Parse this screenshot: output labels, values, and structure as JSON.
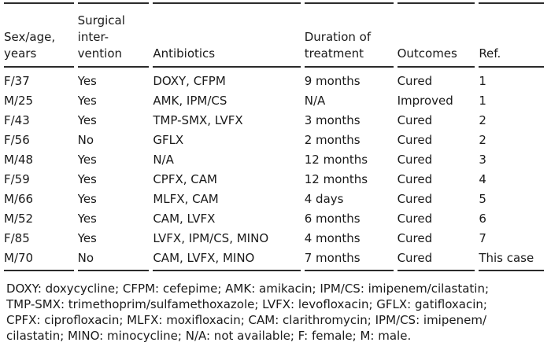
{
  "table": {
    "headers": [
      "Sex/age,\nyears",
      "Surgical\ninter-\nvention",
      "Antibiotics",
      "Duration of\ntreatment",
      "Outcomes",
      "Ref."
    ],
    "rows": [
      [
        "F/37",
        "Yes",
        "DOXY, CFPM",
        "9 months",
        "Cured",
        "1"
      ],
      [
        "M/25",
        "Yes",
        "AMK, IPM/CS",
        "N/A",
        "Improved",
        "1"
      ],
      [
        "F/43",
        "Yes",
        "TMP-SMX, LVFX",
        "3 months",
        "Cured",
        "2"
      ],
      [
        "F/56",
        "No",
        "GFLX",
        "2 months",
        "Cured",
        "2"
      ],
      [
        "M/48",
        "Yes",
        "N/A",
        "12 months",
        "Cured",
        "3"
      ],
      [
        "F/59",
        "Yes",
        "CPFX, CAM",
        "12 months",
        "Cured",
        "4"
      ],
      [
        "M/66",
        "Yes",
        "MLFX, CAM",
        "4 days",
        "Cured",
        "5"
      ],
      [
        "M/52",
        "Yes",
        "CAM, LVFX",
        "6 months",
        "Cured",
        "6"
      ],
      [
        "F/85",
        "Yes",
        "LVFX, IPM/CS, MINO",
        "4 months",
        "Cured",
        "7"
      ],
      [
        "M/70",
        "No",
        "CAM, LVFX, MINO",
        "7 months",
        "Cured",
        "This case"
      ]
    ]
  },
  "footnote": {
    "lines": [
      "DOXY: doxycycline; CFPM: cefepime; AMK: amikacin; IPM/CS: imipenem/cilastatin;",
      "TMP-SMX: trimethoprim/sulfamethoxazole; LVFX: levofloxacin; GFLX: gatifloxacin;",
      "CPFX: ciprofloxacin; MLFX: moxifloxacin; CAM: clarithromycin; IPM/CS: imipenem/",
      "cilastatin; MINO: minocycline; N/A: not available; F: female; M: male."
    ]
  },
  "colors": {
    "text": "#1a1a1a",
    "rule": "#2b2b2b",
    "background": "#ffffff"
  }
}
